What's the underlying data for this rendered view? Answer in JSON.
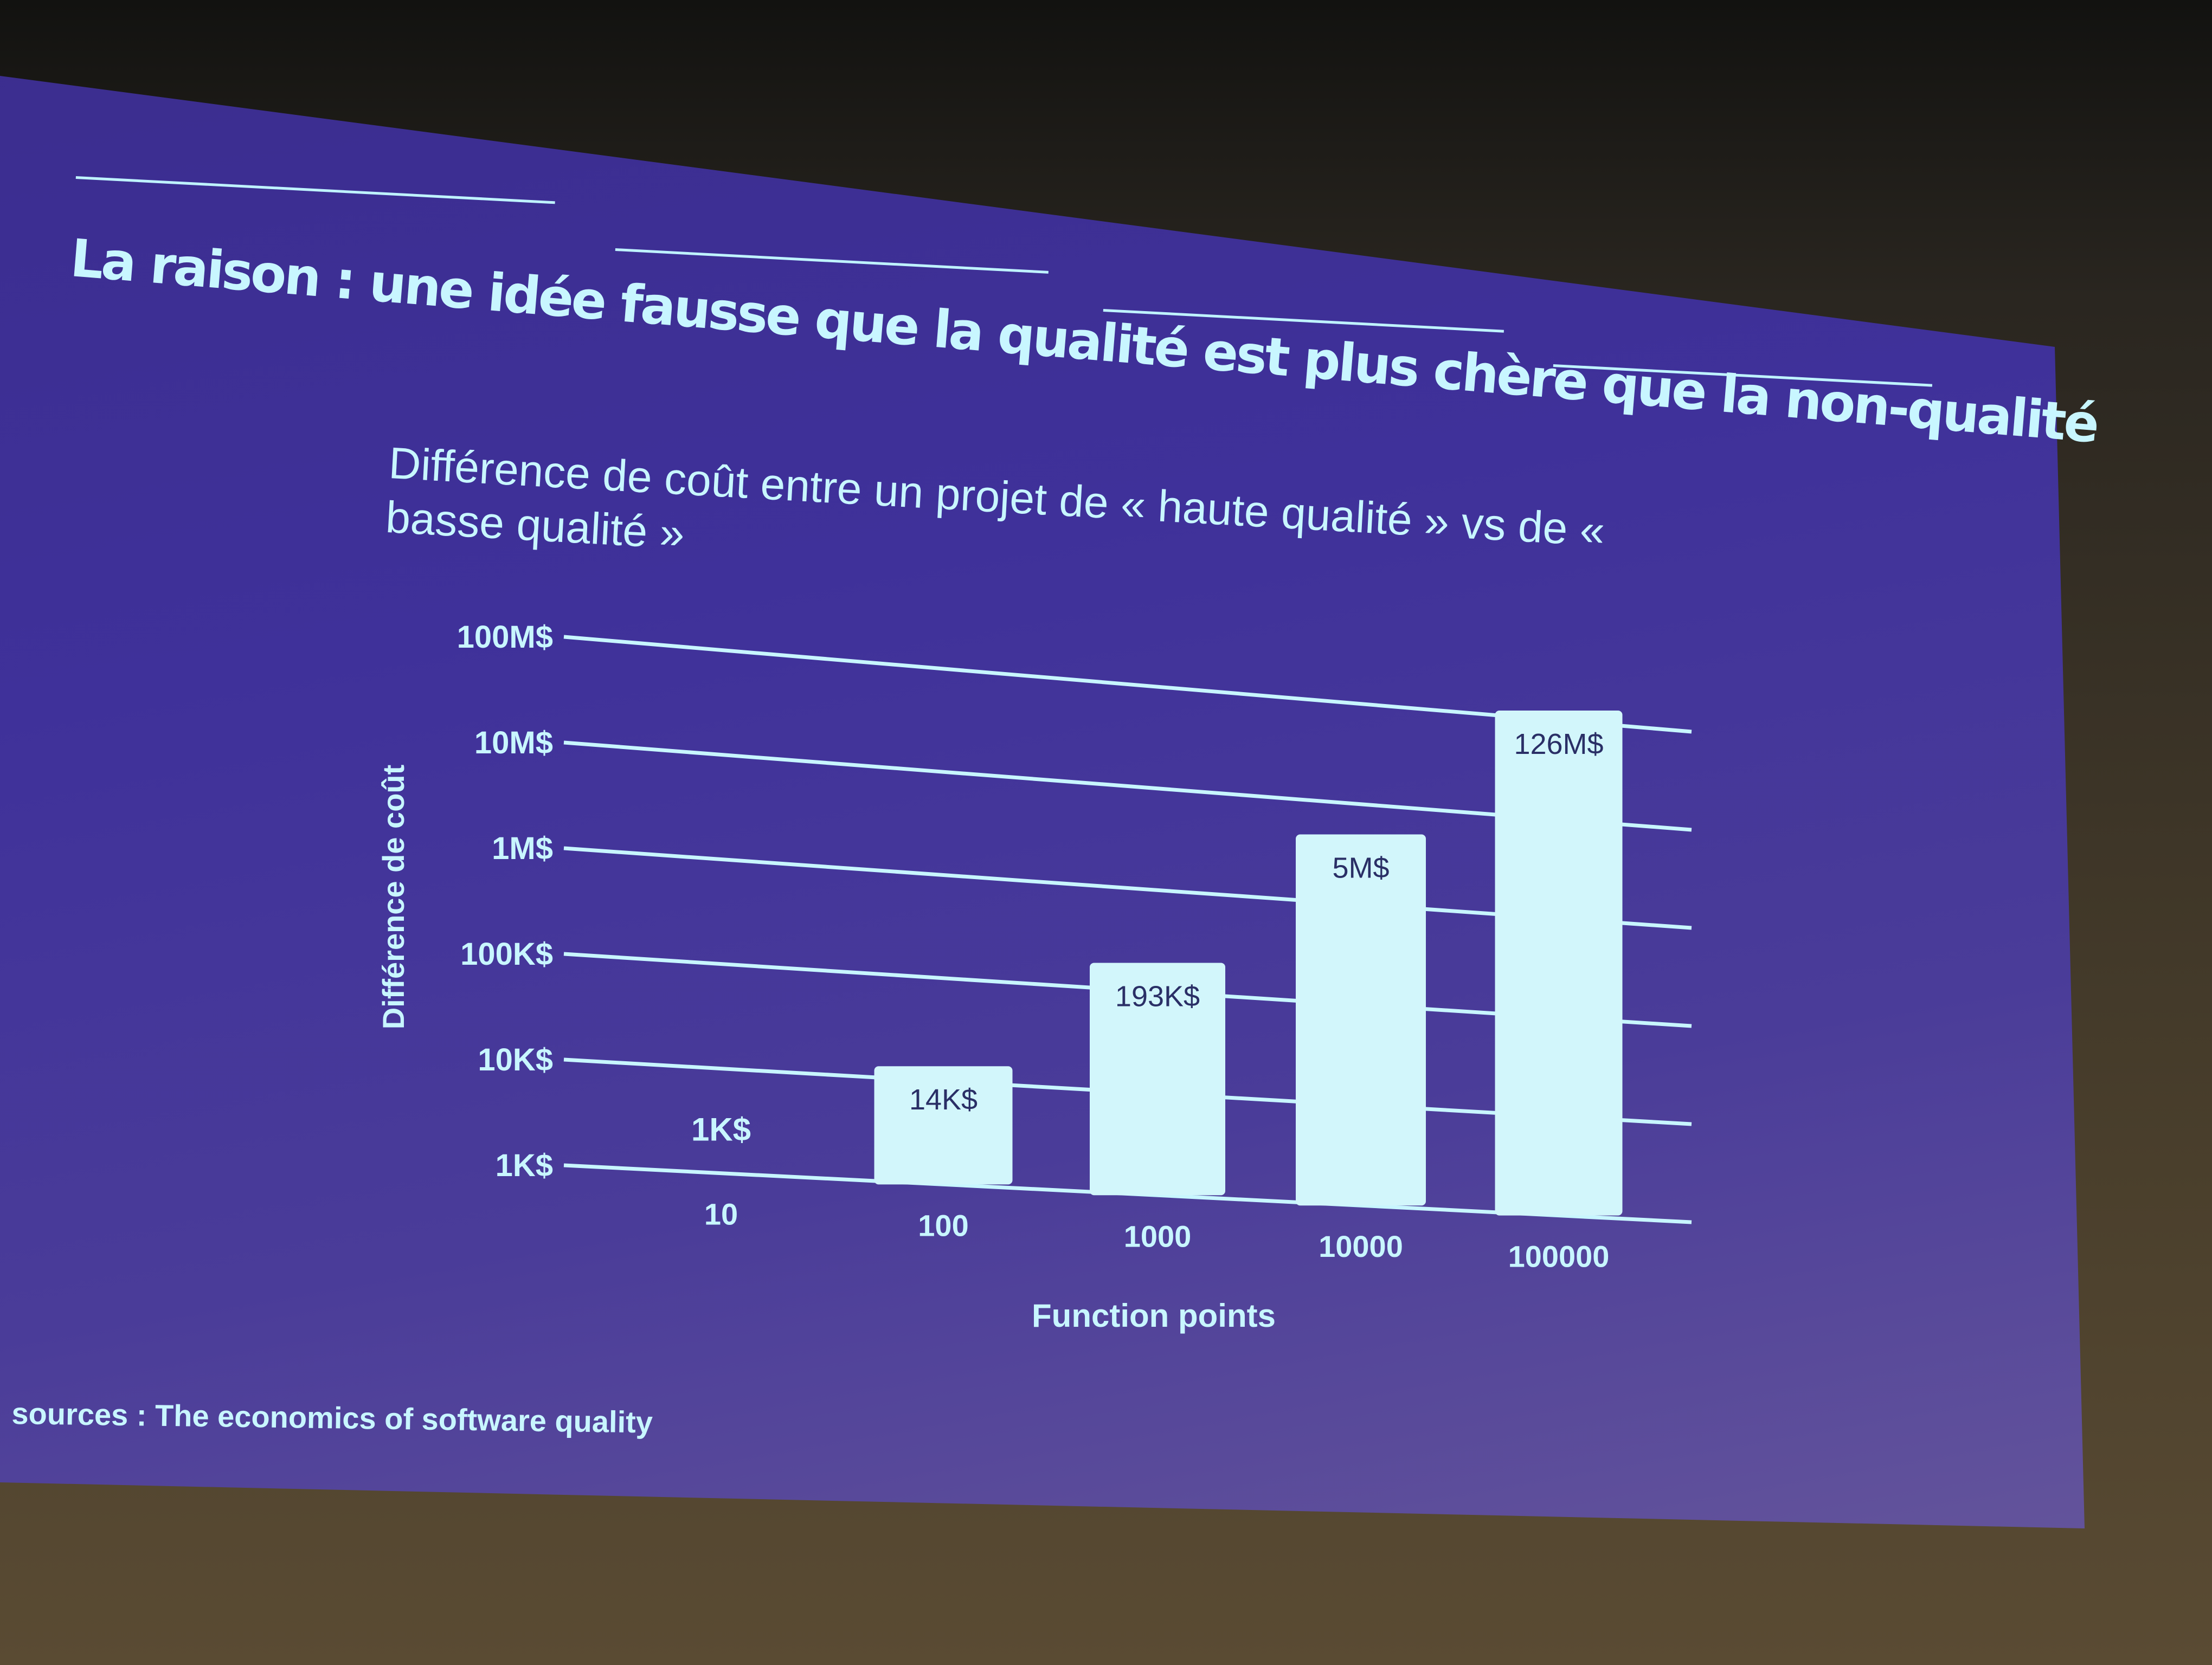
{
  "slide": {
    "title": "La raison : une idée fausse que la qualité est plus chère que la non-qualité",
    "sources": "sources : The economics of software quality"
  },
  "colors": {
    "slide_background": "#3f319a",
    "accent": "#c8f6ff",
    "bar_fill": "#d2f6fb",
    "bar_label": "#2a2f66"
  },
  "chart_data": {
    "type": "bar",
    "title": "Différence de coût entre un projet de « haute qualité » vs de « basse qualité »",
    "xlabel": "Function points",
    "ylabel": "Différence de coût",
    "y_scale": "log",
    "ylim": [
      1000,
      100000000
    ],
    "yticks": [
      {
        "value": 1000,
        "label": "1K$"
      },
      {
        "value": 10000,
        "label": "10K$"
      },
      {
        "value": 100000,
        "label": "100K$"
      },
      {
        "value": 1000000,
        "label": "1M$"
      },
      {
        "value": 10000000,
        "label": "10M$"
      },
      {
        "value": 100000000,
        "label": "100M$"
      }
    ],
    "categories": [
      "10",
      "100",
      "1000",
      "10000",
      "100000"
    ],
    "values": [
      1000,
      14000,
      193000,
      5000000,
      126000000
    ],
    "data_labels": [
      "1K$",
      "14K$",
      "193K$",
      "5M$",
      "126M$"
    ],
    "grid": true,
    "legend": "none"
  }
}
